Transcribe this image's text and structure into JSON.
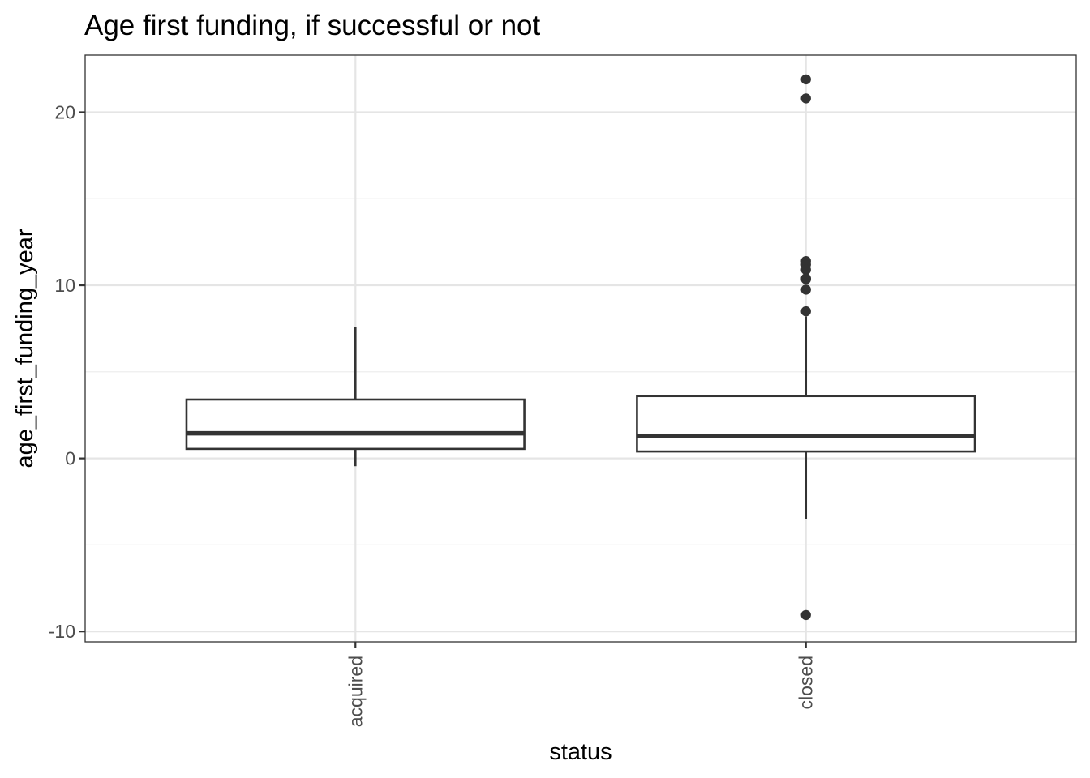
{
  "chart_data": {
    "type": "box",
    "title": "Age first funding, if successful or not",
    "xlabel": "status",
    "ylabel": "age_first_funding_year",
    "ylim": [
      -10.6,
      23.3
    ],
    "yticks": [
      -10,
      0,
      10,
      20
    ],
    "yminor": [
      -5,
      5,
      15
    ],
    "grid": true,
    "categories": [
      "acquired",
      "closed"
    ],
    "boxes": [
      {
        "name": "acquired",
        "whisker_low": -0.45,
        "q1": 0.55,
        "median": 1.45,
        "q3": 3.4,
        "whisker_high": 7.6,
        "outliers": []
      },
      {
        "name": "closed",
        "whisker_low": -3.5,
        "q1": 0.4,
        "median": 1.3,
        "q3": 3.6,
        "whisker_high": 8.2,
        "outliers": [
          21.9,
          20.8,
          11.4,
          11.2,
          10.9,
          10.4,
          10.35,
          9.75,
          8.5,
          -9.05
        ]
      }
    ]
  },
  "colors": {
    "box_line": "#333333",
    "box_fill": "#ffffff",
    "grid": "#e5e5e5",
    "tick_text": "#4d4d4d"
  }
}
